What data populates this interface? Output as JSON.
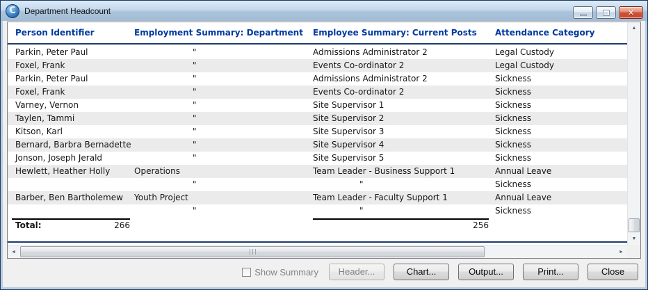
{
  "window": {
    "title": "Department Headcount"
  },
  "icons": {
    "app_logo": "C",
    "close": "✕",
    "scroll_up": "▲",
    "scroll_down": "▼",
    "scroll_left": "◄",
    "scroll_right": "►"
  },
  "table": {
    "columns": [
      "Person Identifier",
      "Employment Summary: Department",
      "Employee Summary: Current Posts",
      "Attendance Category"
    ],
    "rows": [
      {
        "person": "Parkin, Peter Paul",
        "department": "\"",
        "post": "Admissions Administrator 2",
        "attendance": "Legal Custody"
      },
      {
        "person": "Foxel, Frank",
        "department": "\"",
        "post": "Events Co-ordinator 2",
        "attendance": "Legal Custody"
      },
      {
        "person": "Parkin, Peter Paul",
        "department": "\"",
        "post": "Admissions Administrator 2",
        "attendance": "Sickness"
      },
      {
        "person": "Foxel, Frank",
        "department": "\"",
        "post": "Events Co-ordinator 2",
        "attendance": "Sickness"
      },
      {
        "person": "Varney, Vernon",
        "department": "\"",
        "post": "Site Supervisor 1",
        "attendance": "Sickness"
      },
      {
        "person": "Taylen, Tammi",
        "department": "\"",
        "post": "Site Supervisor 2",
        "attendance": "Sickness"
      },
      {
        "person": "Kitson, Karl",
        "department": "\"",
        "post": "Site Supervisor 3",
        "attendance": "Sickness"
      },
      {
        "person": "Bernard, Barbra Bernadette",
        "department": "\"",
        "post": "Site Supervisor 4",
        "attendance": "Sickness"
      },
      {
        "person": "Jonson, Joseph Jerald",
        "department": "\"",
        "post": "Site Supervisor 5",
        "attendance": "Sickness"
      },
      {
        "person": "Hewlett, Heather Holly",
        "department": "Operations",
        "post": "Team Leader - Business Support 1",
        "attendance": "Annual Leave"
      },
      {
        "person": "",
        "department": "\"",
        "post": "\"",
        "attendance": "Sickness"
      },
      {
        "person": "Barber, Ben Bartholemew",
        "department": "Youth Project",
        "post": "Team Leader - Faculty Support 1",
        "attendance": "Annual Leave"
      },
      {
        "person": "",
        "department": "\"",
        "post": "\"",
        "attendance": "Sickness"
      }
    ],
    "totals": {
      "label": "Total:",
      "person_total": "266",
      "post_total": "256"
    }
  },
  "footer": {
    "show_summary_label": "Show Summary",
    "show_summary_checked": false,
    "buttons": [
      {
        "label": "Header...",
        "enabled": false
      },
      {
        "label": "Chart...",
        "enabled": true
      },
      {
        "label": "Output...",
        "enabled": true
      },
      {
        "label": "Print...",
        "enabled": true
      },
      {
        "label": "Close",
        "enabled": true
      }
    ]
  },
  "colors": {
    "header_text": "#003a9e",
    "separator_navy": "#1d3c6e",
    "row_alt": "#ebebeb",
    "titlebar_top": "#dcebf8",
    "titlebar_bottom": "#a2bcd6",
    "close_button_red": "#ce5034",
    "panel_border": "#808080",
    "disabled_text": "#838383"
  }
}
